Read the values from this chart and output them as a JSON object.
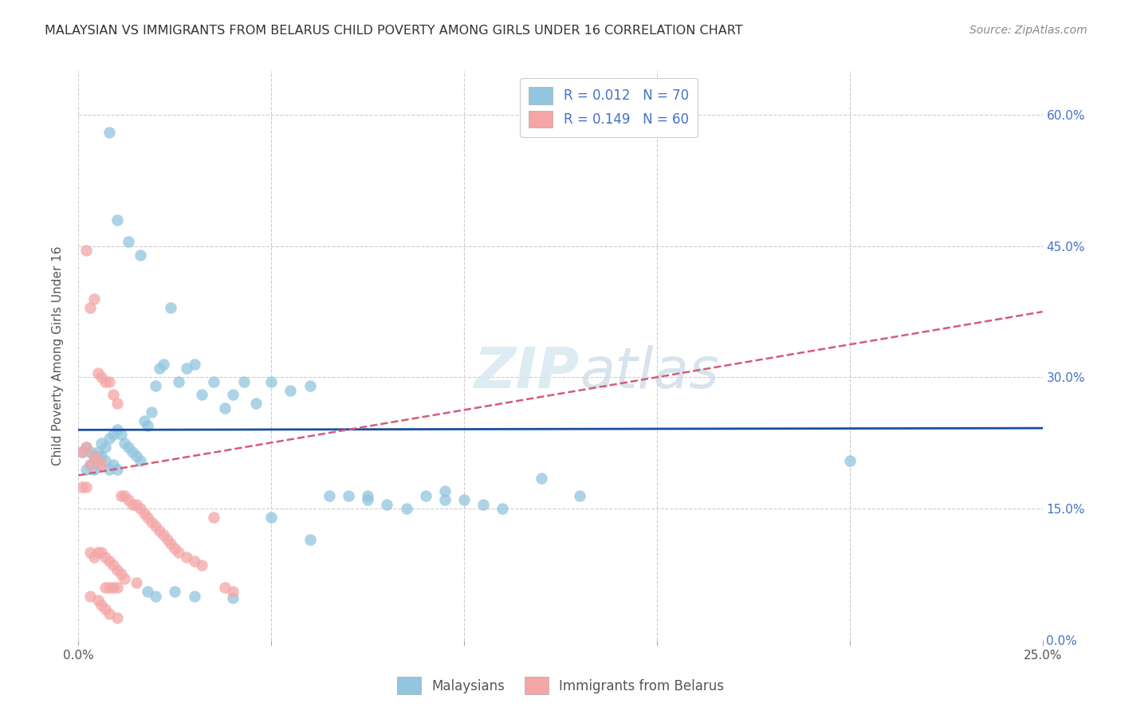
{
  "title": "MALAYSIAN VS IMMIGRANTS FROM BELARUS CHILD POVERTY AMONG GIRLS UNDER 16 CORRELATION CHART",
  "source": "Source: ZipAtlas.com",
  "ylabel": "Child Poverty Among Girls Under 16",
  "xlim": [
    0.0,
    0.25
  ],
  "ylim": [
    0.0,
    0.65
  ],
  "xtick_vals": [
    0.0,
    0.05,
    0.1,
    0.15,
    0.2,
    0.25
  ],
  "xtick_labels": [
    "0.0%",
    "",
    "",
    "",
    "",
    "25.0%"
  ],
  "ytick_vals": [
    0.0,
    0.15,
    0.3,
    0.45,
    0.6
  ],
  "ytick_labels_right": [
    "0.0%",
    "15.0%",
    "30.0%",
    "45.0%",
    "60.0%"
  ],
  "legend_r1": "R = 0.012",
  "legend_n1": "N = 70",
  "legend_r2": "R = 0.149",
  "legend_n2": "N = 60",
  "legend_label1": "Malaysians",
  "legend_label2": "Immigrants from Belarus",
  "color_blue": "#92c5de",
  "color_pink": "#f4a6a6",
  "line_blue": "#1a4fa0",
  "line_pink": "#d45c7a",
  "background_color": "#ffffff",
  "grid_color": "#cccccc",
  "malaysians_x": [
    0.001,
    0.002,
    0.002,
    0.003,
    0.003,
    0.004,
    0.004,
    0.005,
    0.005,
    0.006,
    0.006,
    0.007,
    0.007,
    0.008,
    0.008,
    0.009,
    0.009,
    0.01,
    0.01,
    0.011,
    0.012,
    0.013,
    0.014,
    0.015,
    0.016,
    0.017,
    0.018,
    0.019,
    0.02,
    0.021,
    0.022,
    0.024,
    0.026,
    0.028,
    0.03,
    0.032,
    0.035,
    0.038,
    0.04,
    0.043,
    0.046,
    0.05,
    0.055,
    0.06,
    0.065,
    0.07,
    0.075,
    0.08,
    0.085,
    0.09,
    0.095,
    0.1,
    0.105,
    0.11,
    0.12,
    0.13,
    0.018,
    0.008,
    0.01,
    0.013,
    0.016,
    0.02,
    0.025,
    0.03,
    0.04,
    0.05,
    0.06,
    0.075,
    0.095,
    0.2
  ],
  "malaysians_y": [
    0.215,
    0.22,
    0.195,
    0.215,
    0.2,
    0.21,
    0.195,
    0.215,
    0.2,
    0.225,
    0.21,
    0.22,
    0.205,
    0.23,
    0.195,
    0.235,
    0.2,
    0.24,
    0.195,
    0.235,
    0.225,
    0.22,
    0.215,
    0.21,
    0.205,
    0.25,
    0.245,
    0.26,
    0.29,
    0.31,
    0.315,
    0.38,
    0.295,
    0.31,
    0.315,
    0.28,
    0.295,
    0.265,
    0.28,
    0.295,
    0.27,
    0.295,
    0.285,
    0.29,
    0.165,
    0.165,
    0.16,
    0.155,
    0.15,
    0.165,
    0.17,
    0.16,
    0.155,
    0.15,
    0.185,
    0.165,
    0.055,
    0.58,
    0.48,
    0.455,
    0.44,
    0.05,
    0.055,
    0.05,
    0.048,
    0.14,
    0.115,
    0.165,
    0.16,
    0.205
  ],
  "belarus_x": [
    0.001,
    0.001,
    0.002,
    0.002,
    0.003,
    0.003,
    0.003,
    0.004,
    0.004,
    0.005,
    0.005,
    0.005,
    0.006,
    0.006,
    0.006,
    0.007,
    0.007,
    0.007,
    0.008,
    0.008,
    0.008,
    0.009,
    0.009,
    0.01,
    0.01,
    0.01,
    0.011,
    0.011,
    0.012,
    0.012,
    0.013,
    0.014,
    0.015,
    0.015,
    0.016,
    0.017,
    0.018,
    0.019,
    0.02,
    0.021,
    0.022,
    0.023,
    0.024,
    0.025,
    0.026,
    0.028,
    0.03,
    0.032,
    0.035,
    0.038,
    0.002,
    0.003,
    0.004,
    0.005,
    0.006,
    0.007,
    0.008,
    0.009,
    0.01,
    0.04
  ],
  "belarus_y": [
    0.215,
    0.175,
    0.22,
    0.175,
    0.2,
    0.1,
    0.05,
    0.21,
    0.095,
    0.205,
    0.1,
    0.045,
    0.2,
    0.1,
    0.04,
    0.295,
    0.095,
    0.035,
    0.295,
    0.09,
    0.03,
    0.28,
    0.085,
    0.27,
    0.08,
    0.025,
    0.165,
    0.075,
    0.165,
    0.07,
    0.16,
    0.155,
    0.155,
    0.065,
    0.15,
    0.145,
    0.14,
    0.135,
    0.13,
    0.125,
    0.12,
    0.115,
    0.11,
    0.105,
    0.1,
    0.095,
    0.09,
    0.085,
    0.14,
    0.06,
    0.445,
    0.38,
    0.39,
    0.305,
    0.3,
    0.06,
    0.06,
    0.06,
    0.06,
    0.055
  ],
  "blue_line_x": [
    0.0,
    0.25
  ],
  "blue_line_y": [
    0.24,
    0.242
  ],
  "pink_line_x": [
    0.0,
    0.25
  ],
  "pink_line_y": [
    0.188,
    0.375
  ]
}
